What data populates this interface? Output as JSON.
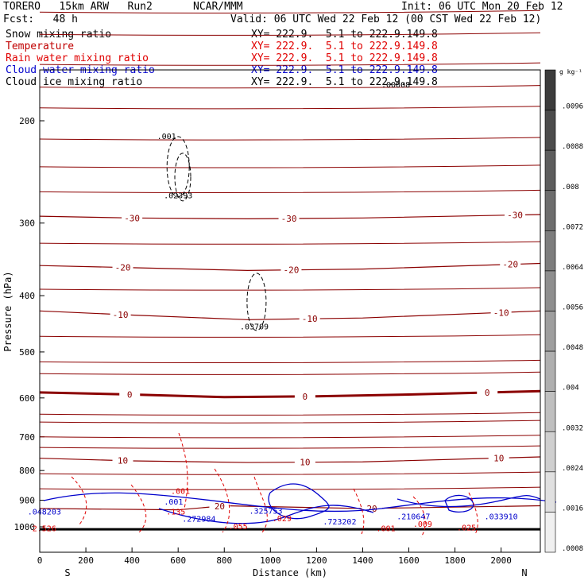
{
  "header": {
    "model": "TORERO   15km ARW   Run2",
    "center": "NCAR/MMM",
    "init": "Init: 06 UTC Mon 20 Feb 12",
    "fcst": "Fcst:   48 h",
    "valid": "Valid: 06 UTC Wed 22 Feb 12 (00 CST Wed 22 Feb 12)"
  },
  "legend": [
    {
      "name": "Snow mixing ratio",
      "color": "#000000",
      "xy": "XY= 222.9.  5.1 to 222.9.149.8"
    },
    {
      "name": "Temperature",
      "color": "#c00000",
      "xy": "XY= 222.9.  5.1 to 222.9.149.8"
    },
    {
      "name": "Rain water mixing ratio",
      "color": "#e00000",
      "xy": "XY= 222.9.  5.1 to 222.9.149.8"
    },
    {
      "name": "Cloud water mixing ratio",
      "color": "#0000cc",
      "xy": "XY= 222.9.  5.1 to 222.9.149.8"
    },
    {
      "name": "Cloud ice mixing ratio",
      "color": "#000000",
      "xy": "XY= 222.9.  5.1 to 222.9.149.8"
    }
  ],
  "colorbar": {
    "unit": "g kg⁻¹",
    "tick_labels": [
      ".0096",
      ".0088",
      ".008",
      ".0072",
      ".0064",
      ".0056",
      ".0048",
      ".004",
      ".0032",
      ".0024",
      ".0016",
      ".0008"
    ],
    "marker": ".00008"
  },
  "chart_data": {
    "type": "line",
    "title": "",
    "xlabel": "Distance (km)",
    "ylabel": "Pressure (hPa)",
    "xlim": [
      0,
      2170
    ],
    "ylim": [
      1020,
      100
    ],
    "y_scale": "log",
    "x_ticks": [
      0,
      200,
      400,
      600,
      800,
      1000,
      1200,
      1400,
      1600,
      1800,
      2000
    ],
    "y_ticks": [
      200,
      300,
      400,
      500,
      600,
      700,
      800,
      900,
      1000
    ],
    "x_end_labels": {
      "left": "S",
      "right": "N"
    },
    "temperature_isotherms": [
      {
        "label": "-30",
        "points": [
          [
            0,
            292
          ],
          [
            400,
            294
          ],
          [
            900,
            295
          ],
          [
            1400,
            294
          ],
          [
            2170,
            290
          ]
        ],
        "label_x": [
          400,
          1080,
          2060
        ]
      },
      {
        "label": "-20",
        "points": [
          [
            0,
            355
          ],
          [
            400,
            358
          ],
          [
            900,
            362
          ],
          [
            1400,
            360
          ],
          [
            2170,
            352
          ]
        ],
        "label_x": [
          360,
          1090,
          2040
        ]
      },
      {
        "label": "-10",
        "points": [
          [
            0,
            425
          ],
          [
            400,
            432
          ],
          [
            900,
            440
          ],
          [
            1400,
            437
          ],
          [
            2170,
            425
          ]
        ],
        "label_x": [
          350,
          1170,
          2000
        ]
      },
      {
        "label": "0",
        "points": [
          [
            0,
            587
          ],
          [
            400,
            592
          ],
          [
            800,
            598
          ],
          [
            1200,
            596
          ],
          [
            1600,
            592
          ],
          [
            2170,
            584
          ]
        ],
        "label_x": [
          390,
          1150,
          1940
        ],
        "bold": true
      },
      {
        "label": "10",
        "points": [
          [
            0,
            762
          ],
          [
            400,
            770
          ],
          [
            900,
            775
          ],
          [
            1400,
            773
          ],
          [
            2170,
            758
          ]
        ],
        "label_x": [
          360,
          1150,
          1990
        ]
      },
      {
        "label": "20",
        "points": [
          [
            0,
            930
          ],
          [
            600,
            935
          ],
          [
            800,
            920
          ],
          [
            1400,
            930
          ],
          [
            2170,
            920
          ]
        ],
        "label_x": [
          780,
          1440
        ]
      }
    ],
    "cloud_ice_labels": [
      {
        "text": ".001",
        "x": 550,
        "p": 215
      },
      {
        "text": ".02393",
        "x": 600,
        "p": 272
      },
      {
        "text": ".03709",
        "x": 930,
        "p": 457
      },
      {
        "text": ".00008",
        "x": 1440,
        "p": 120
      }
    ],
    "cloud_water_labels": [
      {
        "text": ".048203",
        "x": 20,
        "p": 953
      },
      {
        "text": ".272984",
        "x": 690,
        "p": 980
      },
      {
        "text": ".325753",
        "x": 980,
        "p": 950
      },
      {
        "text": ".723202",
        "x": 1300,
        "p": 990
      },
      {
        "text": ".210647",
        "x": 1620,
        "p": 970
      },
      {
        "text": ".033910",
        "x": 2000,
        "p": 970
      },
      {
        "text": ".001",
        "x": 580,
        "p": 915
      }
    ],
    "rain_labels": [
      {
        "text": ".001",
        "x": 610,
        "p": 878
      },
      {
        "text": ".135",
        "x": 590,
        "p": 952
      },
      {
        "text": ".055",
        "x": 860,
        "p": 1010
      },
      {
        "text": ".029",
        "x": 1050,
        "p": 978
      },
      {
        "text": ".009",
        "x": 1660,
        "p": 1000
      },
      {
        "text": ".025",
        "x": 1850,
        "p": 1015
      },
      {
        "text": "2.526",
        "x": 20,
        "p": 1045
      },
      {
        "text": ".001",
        "x": 1500,
        "p": 1035
      }
    ]
  }
}
